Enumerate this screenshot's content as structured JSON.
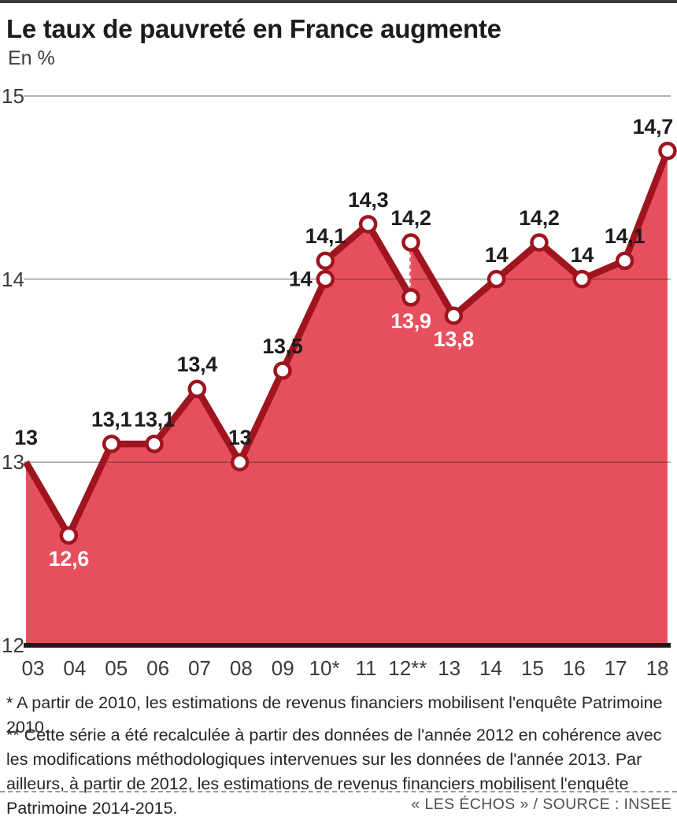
{
  "page": {
    "title": "Le taux de pauvreté en France augmente",
    "subtitle": "En %",
    "footnote_1": "* A partir de 2010, les estimations de revenus financiers mobilisent l'enquête Patrimoine 2010.",
    "footnote_2": "** Cette série a été recalculée à partir des données de l'année 2012 en cohérence avec les modifications méthodologiques intervenues sur les données de l'année 2013. Par ailleurs, à partir de 2012, les estimations de revenus financiers mobilisent l'enquête Patrimoine 2014-2015.",
    "source": "« LES ÉCHOS » / SOURCE : INSEE"
  },
  "colors": {
    "area_fill": "#e84f5c",
    "line_stroke": "#9e141f",
    "marker_fill": "#ffffff",
    "grid_line": "#2d2d2d",
    "baseline": "#1a1a1a",
    "top_bar": "#3a3a3a",
    "dashed_break": "#ed5a66",
    "label_dark": "#1d1d1b",
    "label_white": "#ffffff",
    "axis_text": "#3b3b3b"
  },
  "chart_data": {
    "type": "area",
    "title": "Le taux de pauvreté en France augmente",
    "ylabel": "En %",
    "ylim": [
      12,
      15
    ],
    "yticks": [
      15,
      14,
      13,
      12
    ],
    "xticks": [
      "03",
      "04",
      "05",
      "06",
      "07",
      "08",
      "09",
      "10*",
      "11",
      "12**",
      "13",
      "14",
      "15",
      "16",
      "17",
      "18"
    ],
    "grid": true,
    "legend": "none",
    "points": [
      {
        "x": "03",
        "y": 13,
        "label": "13",
        "label_pos": "above",
        "label_color": "dark",
        "marker": false
      },
      {
        "x": "04",
        "y": 12.6,
        "label": "12,6",
        "label_pos": "below",
        "label_color": "white",
        "marker": true
      },
      {
        "x": "05",
        "y": 13.1,
        "label": "13,1",
        "label_pos": "above",
        "label_color": "dark",
        "marker": true
      },
      {
        "x": "06",
        "y": 13.1,
        "label": "13,1",
        "label_pos": "above",
        "label_color": "dark",
        "marker": true
      },
      {
        "x": "07",
        "y": 13.4,
        "label": "13,4",
        "label_pos": "above",
        "label_color": "dark",
        "marker": true
      },
      {
        "x": "08",
        "y": 13,
        "label": "13",
        "label_pos": "above",
        "label_color": "dark",
        "marker": true
      },
      {
        "x": "09",
        "y": 13.5,
        "label": "13,5",
        "label_pos": "above",
        "label_color": "dark",
        "marker": true
      },
      {
        "x": "10*",
        "y": 14,
        "label": "14",
        "label_pos": "left",
        "label_color": "dark",
        "marker": true
      },
      {
        "x": "10*",
        "y": 14.1,
        "label": "14,1",
        "label_pos": "above",
        "label_color": "dark",
        "marker": true,
        "gap": true
      },
      {
        "x": "11",
        "y": 14.3,
        "label": "14,3",
        "label_pos": "above",
        "label_color": "dark",
        "marker": true
      },
      {
        "x": "12**",
        "y": 13.9,
        "label": "13,9",
        "label_pos": "below",
        "label_color": "white",
        "marker": true
      },
      {
        "x": "12**",
        "y": 14.2,
        "label": "14,2",
        "label_pos": "above",
        "label_color": "dark",
        "marker": true,
        "gap": true,
        "dashed_link": true
      },
      {
        "x": "13",
        "y": 13.8,
        "label": "13,8",
        "label_pos": "below",
        "label_color": "white",
        "marker": true
      },
      {
        "x": "14",
        "y": 14,
        "label": "14",
        "label_pos": "above",
        "label_color": "dark",
        "marker": true
      },
      {
        "x": "15",
        "y": 14.2,
        "label": "14,2",
        "label_pos": "above",
        "label_color": "dark",
        "marker": true
      },
      {
        "x": "16",
        "y": 14,
        "label": "14",
        "label_pos": "above",
        "label_color": "dark",
        "marker": true
      },
      {
        "x": "17",
        "y": 14.1,
        "label": "14,1",
        "label_pos": "above",
        "label_color": "dark",
        "marker": true
      },
      {
        "x": "18",
        "y": 14.7,
        "label": "14,7",
        "label_pos": "above",
        "label_color": "dark",
        "marker": true
      }
    ]
  }
}
